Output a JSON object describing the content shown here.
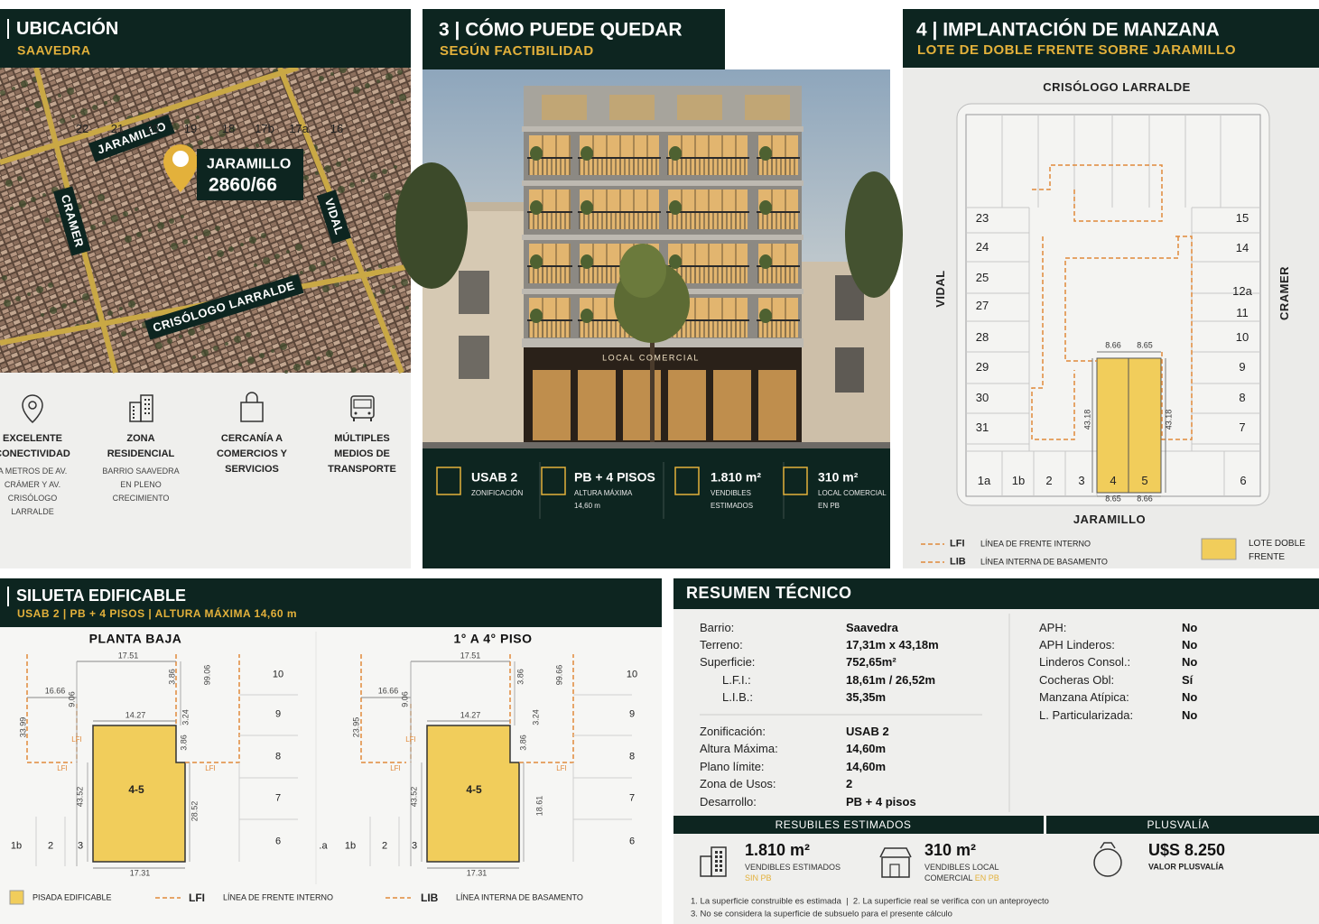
{
  "location": {
    "title": "UBICACIÓN",
    "subtitle": "SAAVEDRA",
    "streets": [
      "JARAMILLO",
      "CRAMER",
      "VIDAL",
      "CRISÓLOGO LARRALDE"
    ],
    "address": [
      "JARAMILLO",
      "2860/66"
    ],
    "features": [
      {
        "title": "EXCELENTE CONECTIVIDAD",
        "text": "A METROS DE AV. CRÁMER Y AV. CRISÓLOGO LARRALDE"
      },
      {
        "title": "ZONA RESIDENCIAL",
        "text": "BARRIO SAAVEDRA EN PLENO CRECIMIENTO"
      },
      {
        "title": "CERCANÍA A COMERCIOS Y SERVICIOS"
      },
      {
        "title": "MÚLTIPLES MEDIOS DE TRANSPORTE"
      }
    ]
  },
  "render": {
    "title": "3 | CÓMO PUEDE QUEDAR",
    "subtitle": "SEGÚN FACTIBILIDAD",
    "storefront": "LOCAL COMERCIAL",
    "stats": [
      {
        "value": "USAB 2",
        "label": "ZONIFICACIÓN"
      },
      {
        "value": "PB + 4 PISOS",
        "label": "ALTURA MÁXIMA 14,60 m"
      },
      {
        "value": "1.810 m²",
        "label": "VENDIBLES ESTIMADOS"
      },
      {
        "value": "310 m²",
        "label": "LOCAL COMERCIAL EN PB"
      }
    ]
  },
  "block": {
    "title": "4 | IMPLANTACIÓN DE MANZANA",
    "subtitle": "LOTE DE DOBLE FRENTE SOBRE JARAMILLO",
    "streets": {
      "top": "CRISÓLOGO LARRALDE",
      "bottom": "JARAMILLO",
      "left": "VIDAL",
      "right": "CRAMER"
    },
    "lots": {
      "top": [
        "22",
        "21",
        "20",
        "19",
        "18",
        "17b",
        "17a",
        "16"
      ],
      "left": [
        "23",
        "24",
        "25",
        "27",
        "28",
        "29",
        "30",
        "31"
      ],
      "right": [
        "15",
        "14",
        "12a",
        "11",
        "10",
        "9",
        "8",
        "7"
      ],
      "bottom": [
        "1a",
        "1b",
        "2",
        "3",
        "4",
        "5",
        "6"
      ]
    },
    "dimensions": [
      "8.66",
      "8.65",
      "43.18",
      "43.18",
      "8.65",
      "8.66"
    ],
    "legend": [
      {
        "key": "LFI",
        "text": "LÍNEA DE FRENTE INTERNO"
      },
      {
        "key": "LIB",
        "text": "LÍNEA INTERNA DE BASAMENTO"
      },
      {
        "text": "LOTE DOBLE FRENTE"
      }
    ]
  },
  "silhouette": {
    "title": "SILUETA EDIFICABLE",
    "subtitle": "USAB 2 | PB + 4 PISOS | ALTURA MÁXIMA 14,60 m",
    "plans": [
      {
        "title": "PLANTA BAJA",
        "labels": [
          "17.51",
          "16.66",
          "9.06",
          "3.86",
          "99.06",
          "14.27",
          "3.24",
          "33.99",
          "LFI",
          "3.86",
          "LFI",
          "LFI",
          "4-5",
          "43.52",
          "28.52",
          "17.31"
        ],
        "lots": [
          "10",
          "9",
          "8",
          "7",
          "6"
        ],
        "front_lots": [
          "1b",
          "2",
          "3"
        ]
      },
      {
        "title": "1° A 4° PISO",
        "labels": [
          "17.51",
          "16.66",
          "9.06",
          "3.86",
          "99.66",
          "14.27",
          "3.24",
          "23.95",
          "LFI",
          "3.86",
          "LFI",
          "LFI",
          "4-5",
          "43.52",
          "18.61",
          "17.31"
        ],
        "lots": [
          "10",
          "9",
          "8",
          "7",
          "6"
        ],
        "front_lots": [
          ".a",
          "1b",
          "2",
          "3"
        ]
      }
    ],
    "legend": [
      {
        "text": "PISADA EDIFICABLE"
      },
      {
        "key": "LFI",
        "text": "LÍNEA DE FRENTE INTERNO"
      },
      {
        "key": "LIB",
        "text": "LÍNEA INTERNA DE BASAMENTO"
      }
    ]
  },
  "summary": {
    "title": "RESUMEN TÉCNICO",
    "lot": [
      [
        "Barrio:",
        "Saavedra"
      ],
      [
        "Terreno:",
        "17,31m x 43,18m"
      ],
      [
        "Superficie:",
        "752,65m²"
      ],
      [
        "L.F.I.:",
        "18,61m / 26,52m"
      ],
      [
        "L.I.B.:",
        "35,35m"
      ]
    ],
    "zoning": [
      [
        "Zonificación:",
        "USAB 2"
      ],
      [
        "Altura Máxima:",
        "14,60m"
      ],
      [
        "Plano límite:",
        "14,60m"
      ],
      [
        "Zona de Usos:",
        "2"
      ],
      [
        "Desarrollo:",
        "PB + 4 pisos"
      ]
    ],
    "flags": [
      [
        "APH:",
        "No"
      ],
      [
        "APH Linderos:",
        "No"
      ],
      [
        "Linderos Consol.:",
        "No"
      ],
      [
        "Cocheras Obl:",
        "Sí"
      ],
      [
        "Manzana Atípica:",
        "No"
      ],
      [
        "L. Particularizada:",
        "No"
      ]
    ],
    "saleable": {
      "title": "RESUBILES ESTIMADOS",
      "items": [
        {
          "value": "1.810 m²",
          "label": "VENDIBLES ESTIMADOS",
          "note": "SIN PB"
        },
        {
          "value": "310 m²",
          "label": "VENDIBLES LOCAL COMERCIAL",
          "note": "EN PB"
        }
      ]
    },
    "capital_gain": {
      "title": "PLUSVALÍA",
      "value": "U$S 8.250",
      "label": "VALOR PLUSVALÍA"
    },
    "notes": [
      "1. La superficie construible es estimada  |  2. La superficie real se verifica con un anteproyecto",
      "3. No se considera la superficie de subsuelo para el presente cálculo"
    ]
  }
}
